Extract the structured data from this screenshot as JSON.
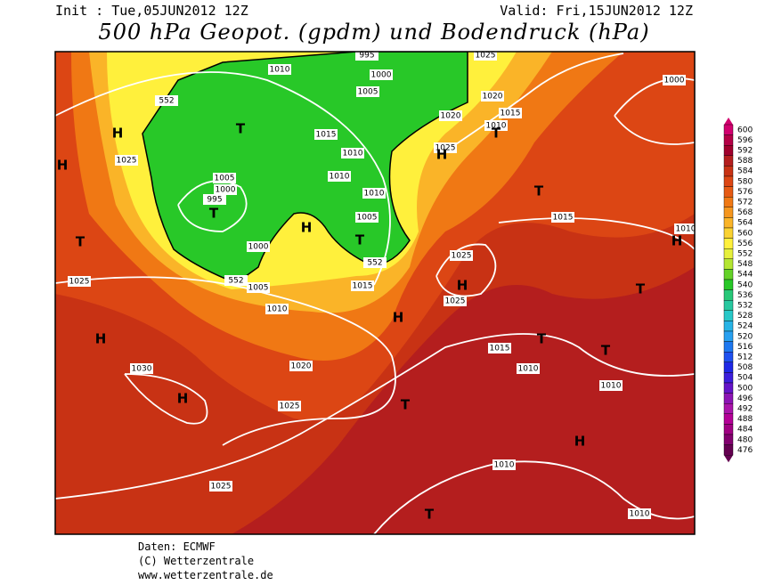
{
  "header": {
    "init": "Init : Tue,05JUN2012 12Z",
    "valid": "Valid: Fri,15JUN2012 12Z",
    "title": "500 hPa Geopot. (gpdm) und Bodendruck (hPa)"
  },
  "colorbar": {
    "values": [
      600,
      596,
      592,
      588,
      584,
      580,
      576,
      572,
      568,
      564,
      560,
      556,
      552,
      548,
      544,
      540,
      536,
      532,
      528,
      524,
      520,
      516,
      512,
      508,
      504,
      500,
      496,
      492,
      488,
      484,
      480,
      476
    ],
    "colors": [
      "#d2006e",
      "#b40046",
      "#a0002d",
      "#b41e1e",
      "#c83214",
      "#dc4614",
      "#e65a14",
      "#f07814",
      "#f5961e",
      "#fab428",
      "#fad232",
      "#fff03c",
      "#e6f03c",
      "#b4e632",
      "#64d228",
      "#28c828",
      "#28c878",
      "#28c8a0",
      "#28c8c8",
      "#28b4e6",
      "#28a0f0",
      "#1e78f0",
      "#1e50f0",
      "#1e28e6",
      "#3c1edc",
      "#6414c8",
      "#8c14b4",
      "#aa14aa",
      "#b40096",
      "#a00082",
      "#82006e",
      "#640050"
    ]
  },
  "isobar_labels": [
    1010,
    995,
    1000,
    1005,
    1025,
    1000,
    552,
    1020,
    1015,
    1020,
    1010,
    1025,
    1015,
    1010,
    1025,
    1010,
    1005,
    1000,
    995,
    1010,
    1005,
    1015,
    1010,
    1000,
    552,
    552,
    1005,
    1015,
    1025,
    1025,
    1025,
    1010,
    1015,
    1010,
    1020,
    1030,
    1010,
    1025,
    1010,
    1025,
    1010
  ],
  "pressure_centers": [
    "H",
    "H",
    "T",
    "T",
    "H",
    "T",
    "H",
    "T",
    "T",
    "T",
    "H",
    "H",
    "T",
    "H",
    "T",
    "T",
    "H",
    "H",
    "T",
    "H",
    "T"
  ],
  "footer": {
    "source": "Daten: ECMWF",
    "copyright": "(C) Wetterzentrale",
    "url": "www.wetterzentrale.de"
  }
}
